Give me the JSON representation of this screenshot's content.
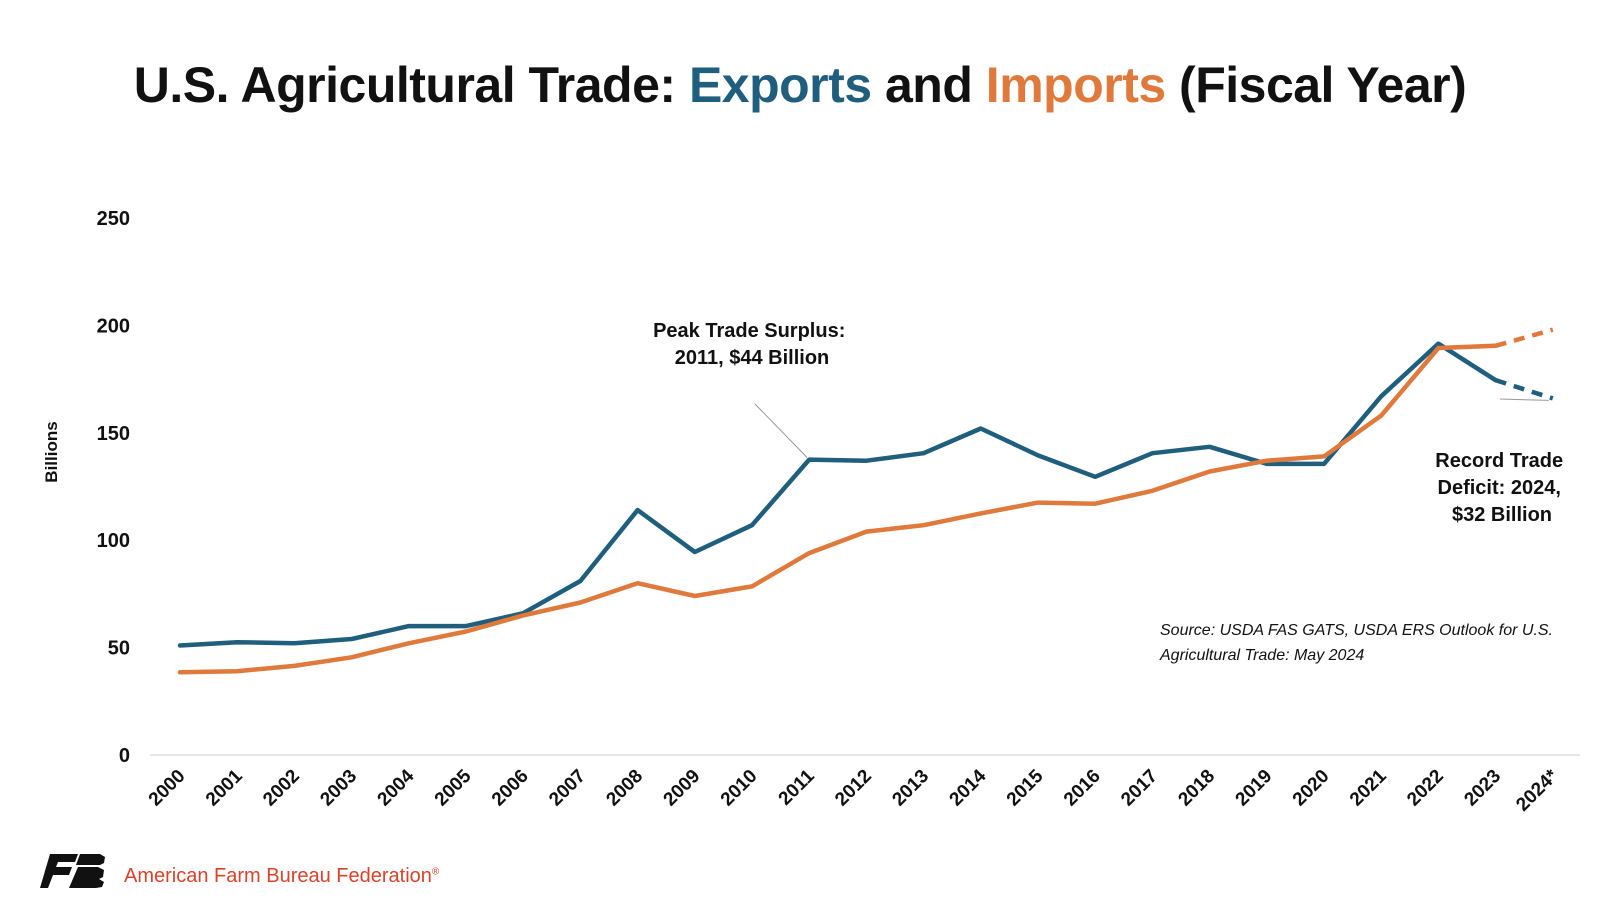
{
  "title": {
    "part1": "U.S. Agricultural Trade: ",
    "exports_word": "Exports",
    "part2": " and ",
    "imports_word": "Imports",
    "part3": " (Fiscal Year)"
  },
  "colors": {
    "exports": "#1f5e7d",
    "imports": "#e07a3c",
    "title_text": "#111111",
    "org_text": "#d9432a",
    "axis": "#cccccc"
  },
  "chart_data": {
    "type": "line",
    "ylabel": "Billions",
    "ylim": [
      0,
      250
    ],
    "yticks": [
      0,
      50,
      100,
      150,
      200,
      250
    ],
    "grid": false,
    "categories": [
      "2000",
      "2001",
      "2002",
      "2003",
      "2004",
      "2005",
      "2006",
      "2007",
      "2008",
      "2009",
      "2010",
      "2011",
      "2012",
      "2013",
      "2014",
      "2015",
      "2016",
      "2017",
      "2018",
      "2019",
      "2020",
      "2021",
      "2022",
      "2023",
      "2024*"
    ],
    "series": [
      {
        "name": "Exports",
        "color": "#1f5e7d",
        "projected_from_index": 23,
        "values": [
          51,
          52.5,
          52,
          54,
          60,
          60,
          66,
          81,
          114,
          94.5,
          107,
          137.5,
          137,
          140.5,
          152,
          139.5,
          129.5,
          140.5,
          143.5,
          135.5,
          135.5,
          167,
          191.5,
          174.5,
          166
        ]
      },
      {
        "name": "Imports",
        "color": "#e07a3c",
        "projected_from_index": 23,
        "values": [
          38.5,
          39,
          41.5,
          45.5,
          52,
          57.5,
          65,
          71,
          80,
          74,
          78.5,
          94,
          104,
          107,
          112.5,
          117.5,
          117,
          123,
          132,
          137,
          139,
          158,
          189.5,
          190.5,
          198
        ]
      }
    ],
    "annotations": [
      {
        "lines": [
          "Peak Trade Surplus:",
          "2011, $44 Billion"
        ],
        "points_to": {
          "x": "2011",
          "series": "Exports"
        }
      },
      {
        "lines": [
          "Record Trade",
          "Deficit: 2024,",
          "$32 Billion"
        ],
        "points_to": {
          "x": "2024*",
          "series": "Exports"
        }
      }
    ]
  },
  "source": {
    "line1": "Source: USDA FAS GATS, USDA ERS Outlook for U.S.",
    "line2": "Agricultural Trade: May 2024"
  },
  "footer": {
    "logo_icon": "fb-logo-icon",
    "organization": "American Farm Bureau Federation",
    "registered_mark": "®"
  }
}
